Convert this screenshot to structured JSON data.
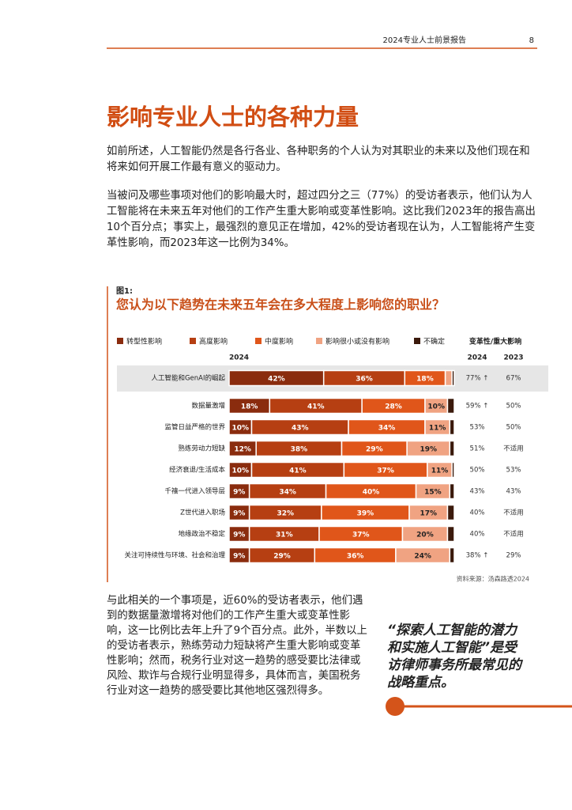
{
  "header": {
    "report": "2024专业人士前景报告",
    "page": "8"
  },
  "title": "影响专业人士的各种力量",
  "paragraphs": [
    "如前所述，人工智能仍然是各行各业、各种职务的个人认为对其职业的未来以及他们现在和将来如何开展工作最有意义的驱动力。",
    "当被问及哪些事项对他们的影响最大时，超过四分之三（77%）的受访者表示，他们认为人工智能将在未来五年对他们的工作产生重大影响或变革性影响。这比我们2023年的报告高出10个百分点；事实上，最强烈的意见正在增加，42%的受访者现在认为，人工智能将产生变革性影响，而2023年这一比例为34%。"
  ],
  "figure": {
    "label": "图1:",
    "source": "资料来源：汤森路透2024"
  },
  "chart_data": {
    "type": "bar",
    "orientation": "horizontal",
    "stacked": true,
    "title": "您认为以下趋势在未来五年会在多大程度上影响您的职业？",
    "bar_header": "2024",
    "categories": [
      "人工智能和GenAI的崛起",
      "数据量激增",
      "监管日益严格的世界",
      "熟练劳动力短缺",
      "经济衰退/生活成本",
      "千禧一代进入领导层",
      "Z世代进入职场",
      "地缘政治不稳定",
      "关注可持续性与环境、社会和治理"
    ],
    "xlim": [
      0,
      100
    ],
    "series": [
      {
        "name": "转型性影响",
        "color": "#8a2c0e",
        "values": [
          42,
          18,
          10,
          12,
          10,
          9,
          9,
          9,
          9
        ],
        "value_labels": [
          "42%",
          "18%",
          "10%",
          "12%",
          "10%",
          "9%",
          "9%",
          "9%",
          "9%"
        ]
      },
      {
        "name": "高度影响",
        "color": "#b63f12",
        "values": [
          36,
          41,
          43,
          38,
          41,
          34,
          32,
          31,
          29
        ],
        "value_labels": [
          "36%",
          "41%",
          "43%",
          "38%",
          "41%",
          "34%",
          "32%",
          "31%",
          "29%"
        ]
      },
      {
        "name": "中度影响",
        "color": "#e0561a",
        "values": [
          18,
          28,
          34,
          29,
          37,
          40,
          39,
          37,
          36
        ],
        "value_labels": [
          "18%",
          "28%",
          "34%",
          "29%",
          "37%",
          "40%",
          "39%",
          "37%",
          "36%"
        ]
      },
      {
        "name": "影响很小或没有影响",
        "color": "#f0a382",
        "values": [
          3,
          10,
          11,
          19,
          11,
          15,
          17,
          20,
          24
        ],
        "value_labels": [
          null,
          "10%",
          "11%",
          "19%",
          "11%",
          "15%",
          "17%",
          "20%",
          "24%"
        ]
      },
      {
        "name": "不确定",
        "color": "#3b1a0c",
        "values": [
          1,
          3,
          2,
          2,
          1,
          2,
          3,
          3,
          2
        ],
        "value_labels": [
          null,
          null,
          null,
          null,
          null,
          null,
          null,
          null,
          null
        ]
      }
    ],
    "table": {
      "header": "变革性/重大影响",
      "columns": [
        "2024",
        "2023"
      ],
      "rows": [
        [
          "77% ↑",
          "67%"
        ],
        [
          "59% ↑",
          "50%"
        ],
        [
          "53%",
          "50%"
        ],
        [
          "51%",
          "不适用"
        ],
        [
          "50%",
          "53%"
        ],
        [
          "43%",
          "43%"
        ],
        [
          "40%",
          "不适用"
        ],
        [
          "40%",
          "不适用"
        ],
        [
          "38% ↑",
          "29%"
        ]
      ]
    }
  },
  "body": "与此相关的一个事项是，近60%的受访者表示，他们遇到的数据量激增将对他们的工作产生重大或变革性影响，这一比例比去年上升了9个百分点。此外，半数以上的受访者表示，熟练劳动力短缺将产生重大影响或变革性影响；然而，税务行业对这一趋势的感受要比法律或风险、欺诈与合规行业明显得多，具体而言，美国税务行业对这一趋势的感受要比其他地区强烈得多。",
  "quote": "“探索人工智能的潜力和实施人工智能”是受访律师事务所最常见的战略重点。"
}
